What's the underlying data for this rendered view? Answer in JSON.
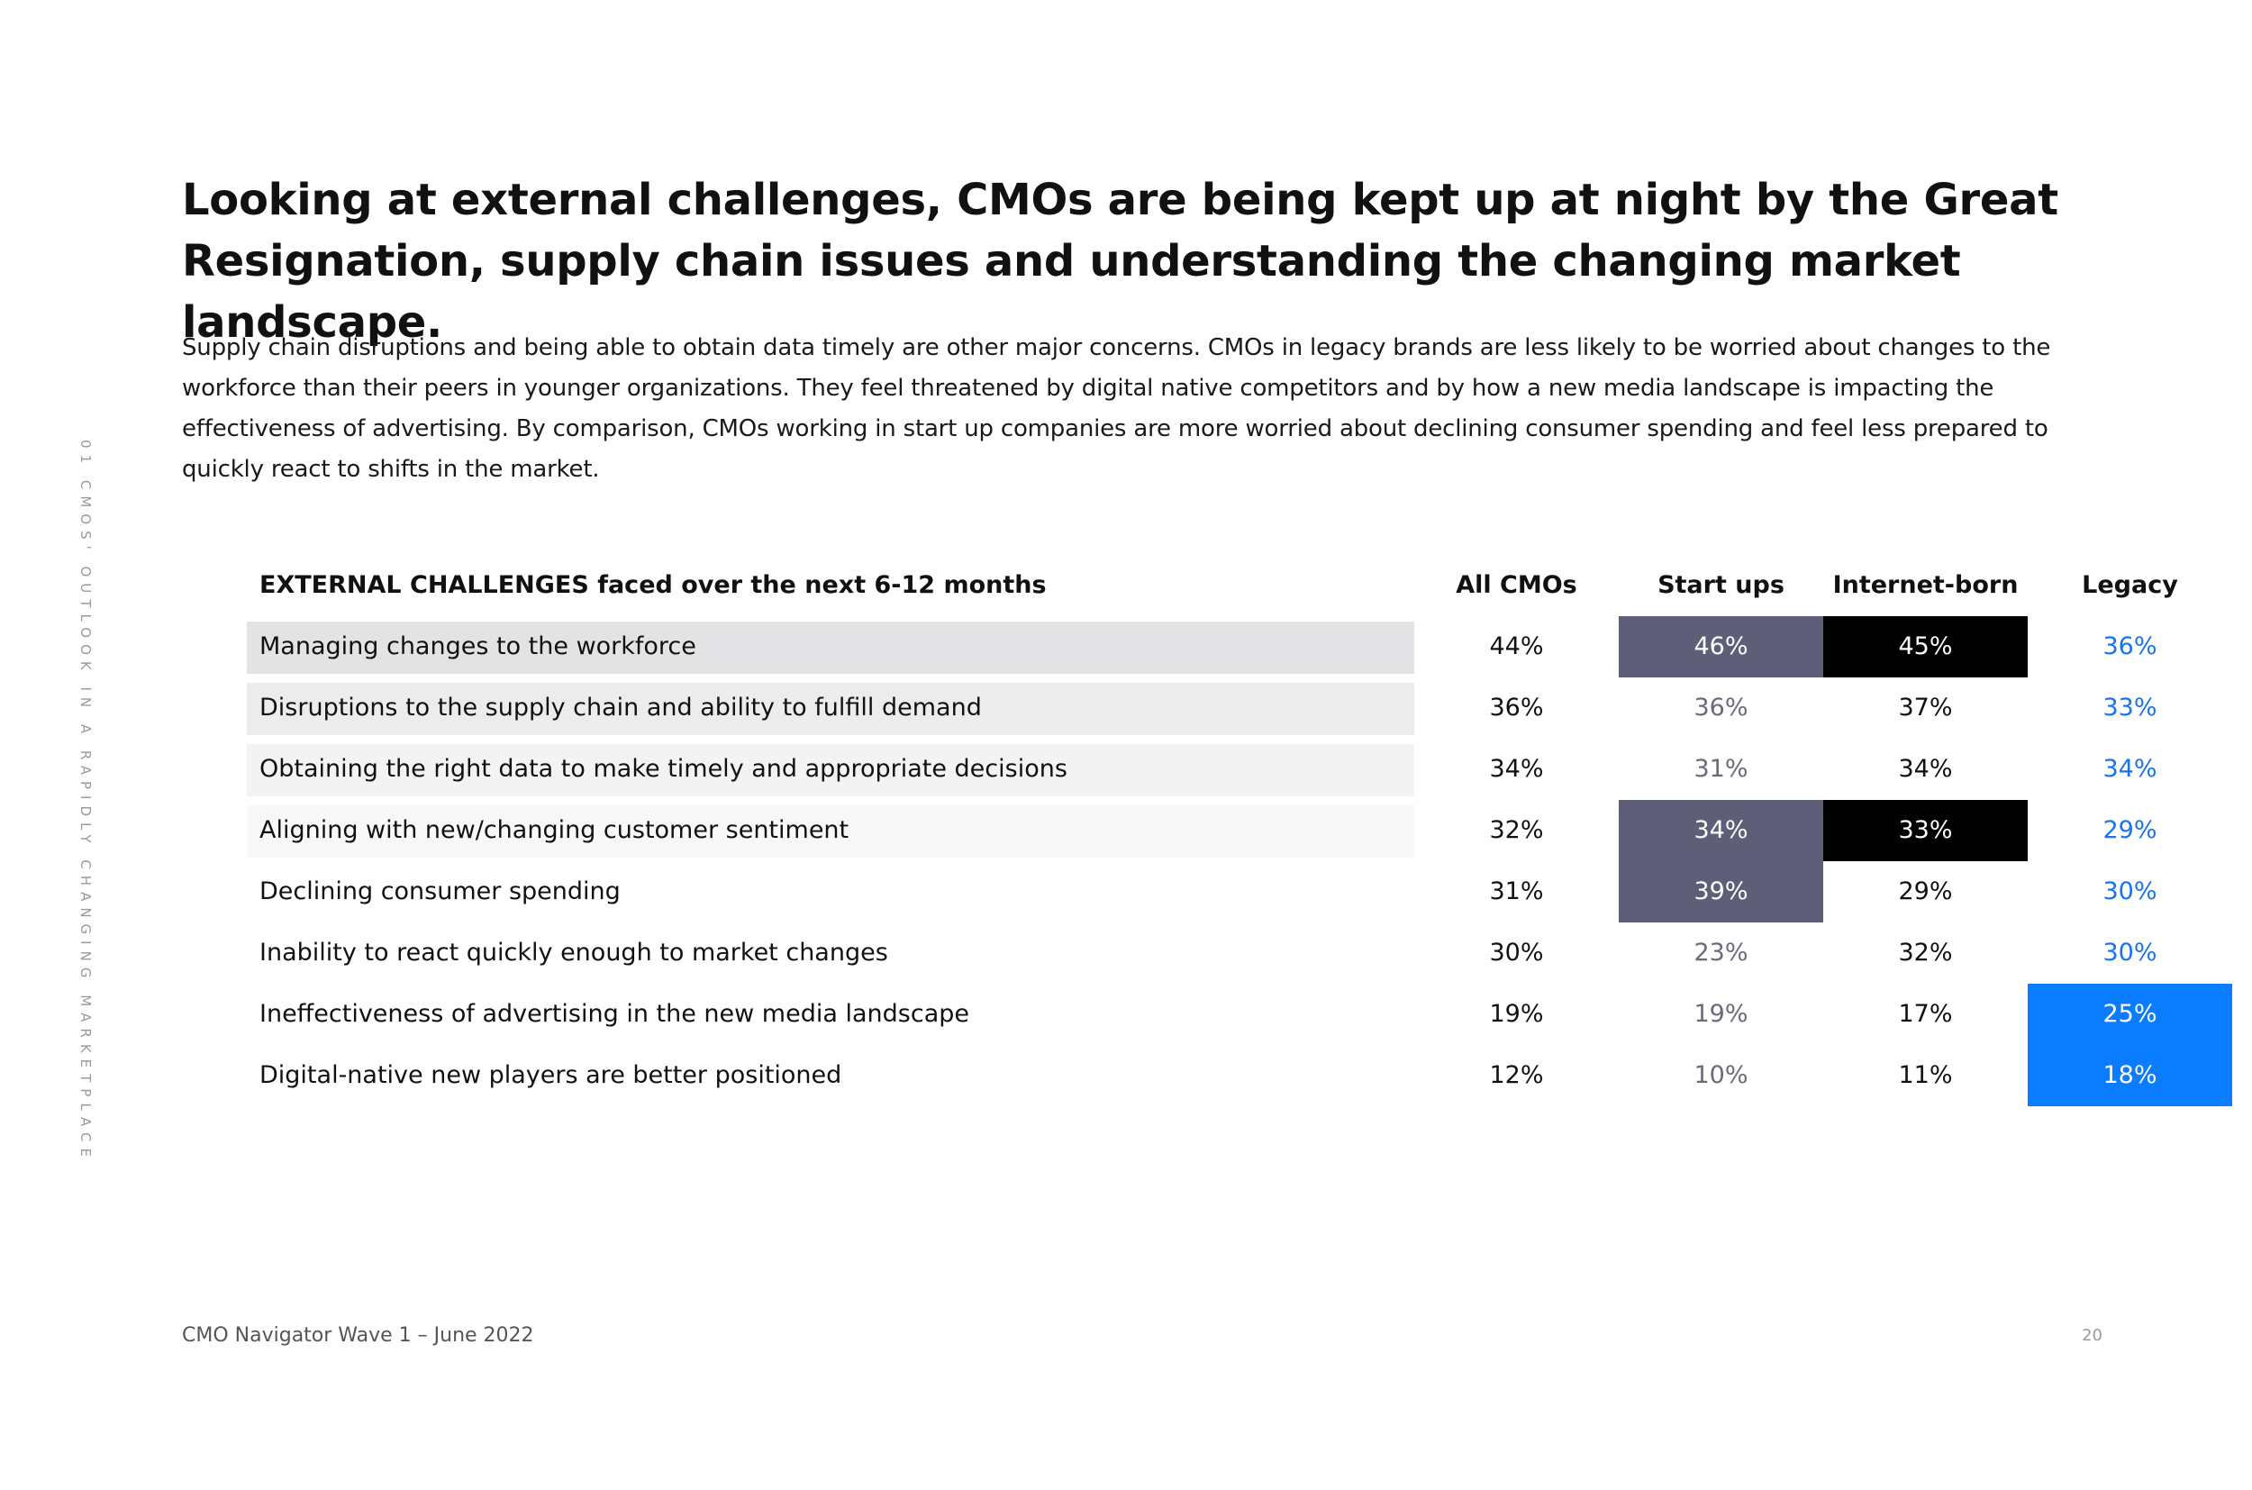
{
  "side_label": "01 CMOS' OUTLOOK IN A RAPIDLY CHANGING MARKETPLACE",
  "headline": "Looking at external challenges, CMOs are being kept up at night by the Great Resignation, supply chain issues and understanding the changing market landscape.",
  "intro": "Supply chain disruptions and being able to obtain data timely are other major concerns. CMOs in legacy brands are less likely to be worried about changes to the workforce than their peers in younger organizations. They feel threatened by digital native competitors and by how a new media landscape is impacting the effectiveness of advertising. By comparison, CMOs working in start up companies are more worried about declining consumer spending and feel less prepared to quickly react to shifts in the market.",
  "table": {
    "header": {
      "label": "EXTERNAL CHALLENGES faced over the next 6-12 months",
      "all_cmos": "All CMOs",
      "start_ups": "Start ups",
      "internet_born": "Internet-born",
      "legacy": "Legacy"
    },
    "rows": [
      {
        "label": "Managing changes to the workforce",
        "all_cmos": "44%",
        "start_ups": "46%",
        "internet_born": "45%",
        "legacy": "36%"
      },
      {
        "label": "Disruptions to the supply chain and ability to fulfill demand",
        "all_cmos": "36%",
        "start_ups": "36%",
        "internet_born": "37%",
        "legacy": "33%"
      },
      {
        "label": "Obtaining the right data to make timely and appropriate decisions",
        "all_cmos": "34%",
        "start_ups": "31%",
        "internet_born": "34%",
        "legacy": "34%"
      },
      {
        "label": "Aligning with new/changing customer sentiment",
        "all_cmos": "32%",
        "start_ups": "34%",
        "internet_born": "33%",
        "legacy": "29%"
      },
      {
        "label": "Declining consumer spending",
        "all_cmos": "31%",
        "start_ups": "39%",
        "internet_born": "29%",
        "legacy": "30%"
      },
      {
        "label": "Inability to react quickly enough to market changes",
        "all_cmos": "30%",
        "start_ups": "23%",
        "internet_born": "32%",
        "legacy": "30%"
      },
      {
        "label": "Ineffectiveness of advertising in the new media landscape",
        "all_cmos": "19%",
        "start_ups": "19%",
        "internet_born": "17%",
        "legacy": "25%"
      },
      {
        "label": "Digital-native new players are better positioned",
        "all_cmos": "12%",
        "start_ups": "10%",
        "internet_born": "11%",
        "legacy": "18%"
      }
    ]
  },
  "colors": {
    "start_ups_highlight": "#5e5e78",
    "internet_born_highlight": "#000000",
    "legacy_highlight": "#0a7cff",
    "legacy_text": "#1a73e8"
  },
  "footer": {
    "left": "CMO Navigator Wave 1 – June 2022",
    "page_number": "20"
  }
}
